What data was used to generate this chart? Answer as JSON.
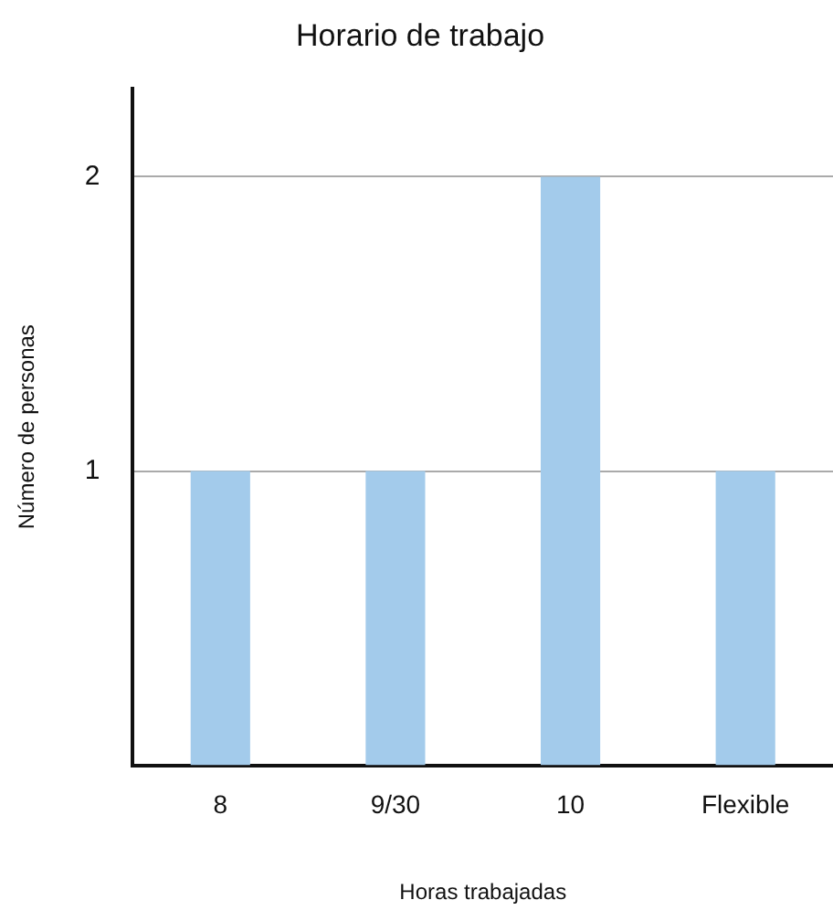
{
  "chart_data": {
    "type": "bar",
    "title": "Horario de trabajo",
    "xlabel": "Horas trabajadas",
    "ylabel": "Número de personas",
    "categories": [
      "8",
      "9/30",
      "10",
      "Flexible"
    ],
    "values": [
      1,
      1,
      2,
      1
    ],
    "color": "#a3cbeb",
    "ylim": [
      0,
      2.3
    ],
    "yticks": [
      1,
      2
    ],
    "grid": "y",
    "legend": false
  }
}
